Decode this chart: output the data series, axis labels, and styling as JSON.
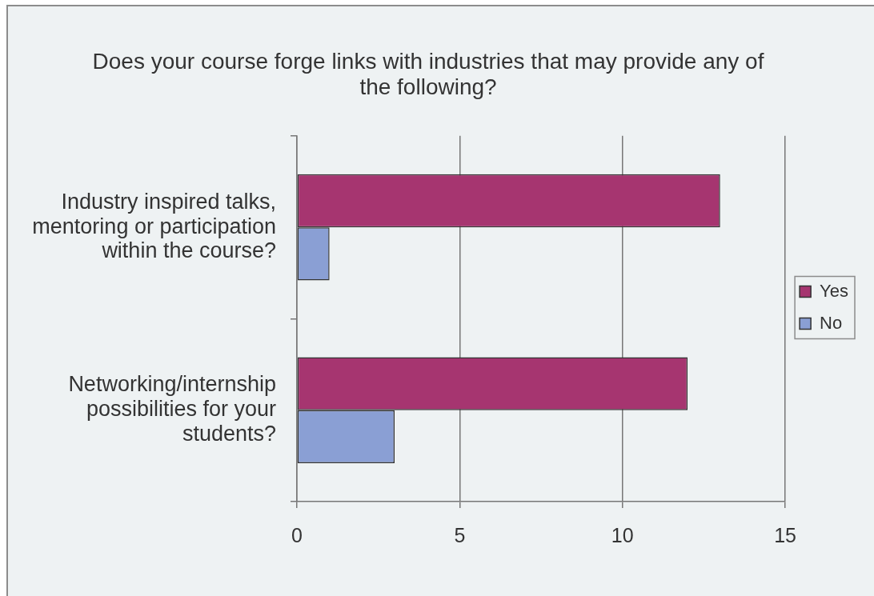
{
  "chart_data": {
    "type": "bar",
    "orientation": "horizontal",
    "title": "Does your course forge links with industries that may provide any of the following?",
    "categories": [
      "Industry inspired talks, mentoring or participation within the course?",
      "Networking/internship possibilities for your students?"
    ],
    "series": [
      {
        "name": "Yes",
        "color": "#a63570",
        "values": [
          13,
          12
        ]
      },
      {
        "name": "No",
        "color": "#8a9fd4",
        "values": [
          1,
          3
        ]
      }
    ],
    "xlim": [
      0,
      15
    ],
    "xticks": [
      0,
      5,
      10,
      15
    ],
    "grid": "x",
    "legend": "right"
  }
}
